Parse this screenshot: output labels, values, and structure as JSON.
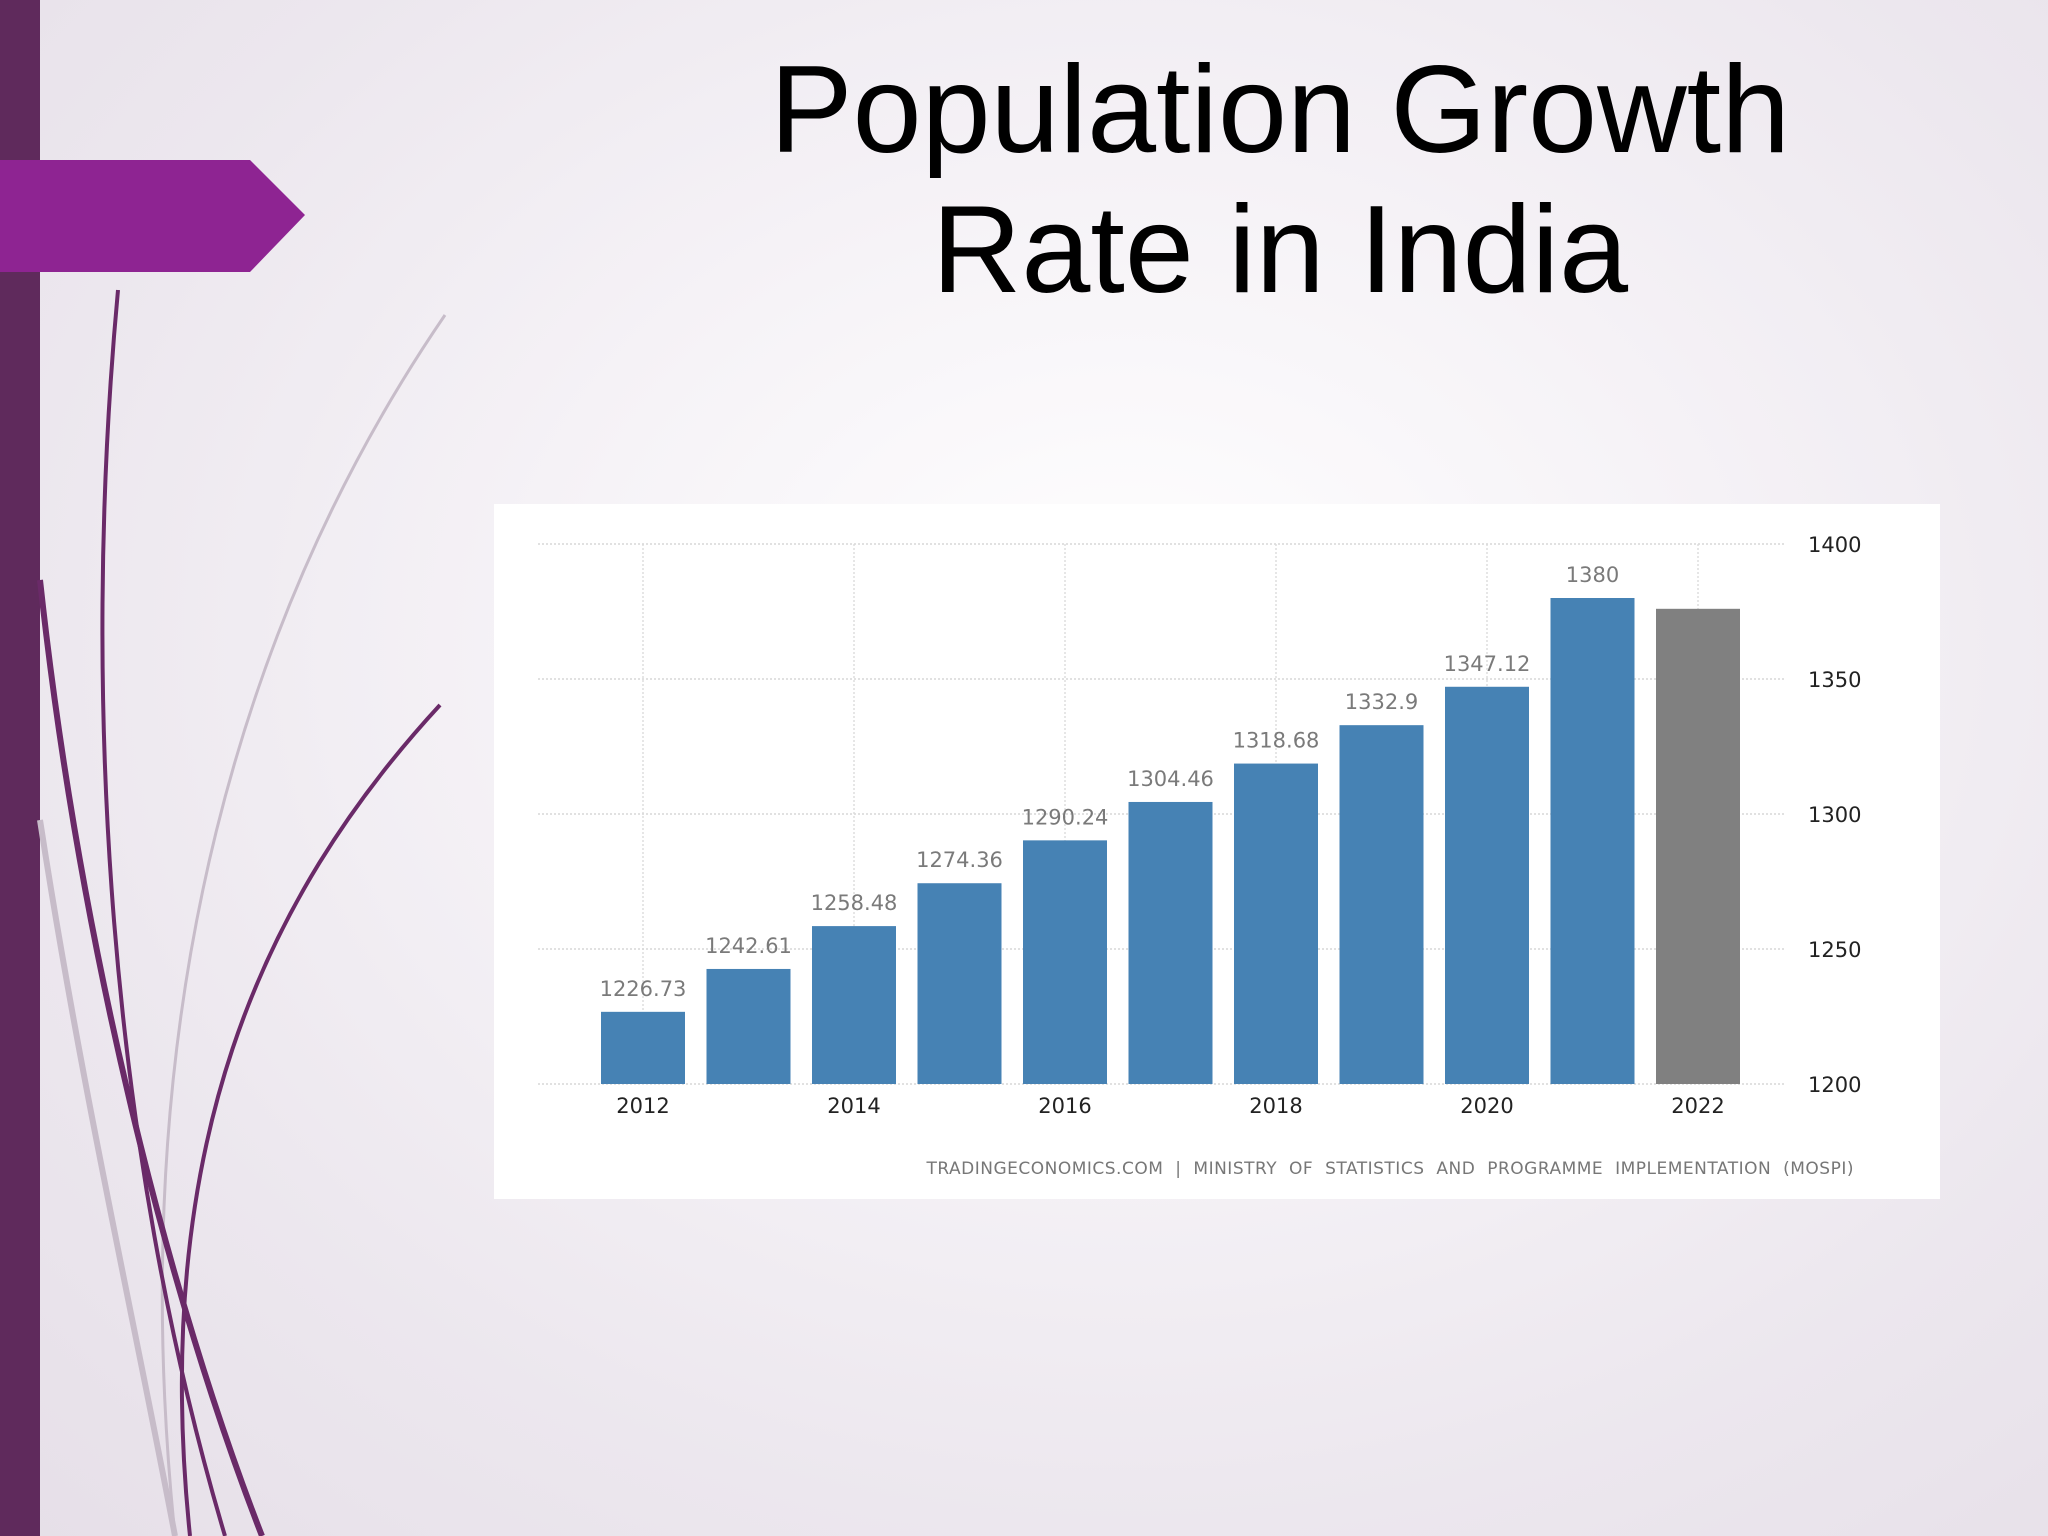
{
  "slide": {
    "title_line1": "Population Growth",
    "title_line2": "Rate in India"
  },
  "colors": {
    "accent_bar": "#5f2a5c",
    "arrow": "#8e2492",
    "bar_actual": "#4682b4",
    "bar_forecast": "#808080",
    "decor_line": "#6a2a68",
    "decor_line_light": "#c7bcc9"
  },
  "chart_data": {
    "type": "bar",
    "x": [
      2012,
      2013,
      2014,
      2015,
      2016,
      2017,
      2018,
      2019,
      2020,
      2021,
      2022
    ],
    "values": [
      1226.73,
      1242.61,
      1258.48,
      1274.36,
      1290.24,
      1304.46,
      1318.68,
      1332.9,
      1347.12,
      1380,
      1376
    ],
    "data_labels": [
      "1226.73",
      "1242.61",
      "1258.48",
      "1274.36",
      "1290.24",
      "1304.46",
      "1318.68",
      "1332.9",
      "1347.12",
      "1380",
      ""
    ],
    "forecast": [
      false,
      false,
      false,
      false,
      false,
      false,
      false,
      false,
      false,
      false,
      true
    ],
    "x_tick_labels": [
      "2012",
      "2014",
      "2016",
      "2018",
      "2020",
      "2022"
    ],
    "y_tick_labels": [
      "1200",
      "1250",
      "1300",
      "1350",
      "1400"
    ],
    "ylim": [
      1200,
      1400
    ],
    "y_axis_side": "right",
    "grid": true,
    "title": "",
    "xlabel": "",
    "ylabel": "",
    "source": "TRADINGECONOMICS.COM | MINISTRY OF STATISTICS AND PROGRAMME IMPLEMENTATION (MOSPI)"
  }
}
